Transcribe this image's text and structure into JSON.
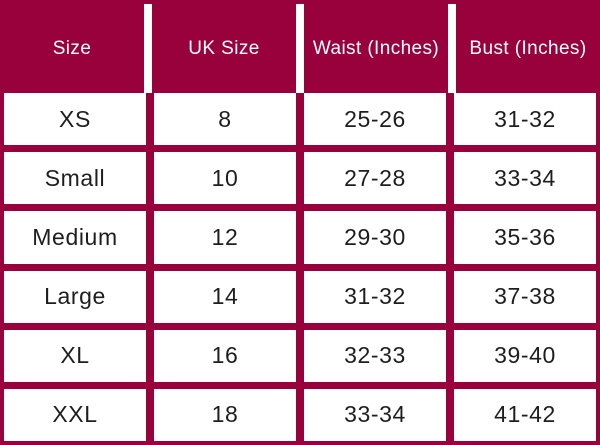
{
  "chart_data": {
    "type": "table",
    "columns": [
      "Size",
      "UK Size",
      "Waist (Inches)",
      "Bust (Inches)"
    ],
    "rows": [
      [
        "XS",
        "8",
        "25-26",
        "31-32"
      ],
      [
        "Small",
        "10",
        "27-28",
        "33-34"
      ],
      [
        "Medium",
        "12",
        "29-30",
        "35-36"
      ],
      [
        "Large",
        "14",
        "31-32",
        "37-38"
      ],
      [
        "XL",
        "16",
        "32-33",
        "39-40"
      ],
      [
        "XXL",
        "18",
        "33-34",
        "41-42"
      ]
    ]
  },
  "colors": {
    "maroon": "#98013C",
    "header_text": "#FFFFFF",
    "body_text": "#1E1E1E",
    "cell_background": "#FFFFFF"
  }
}
